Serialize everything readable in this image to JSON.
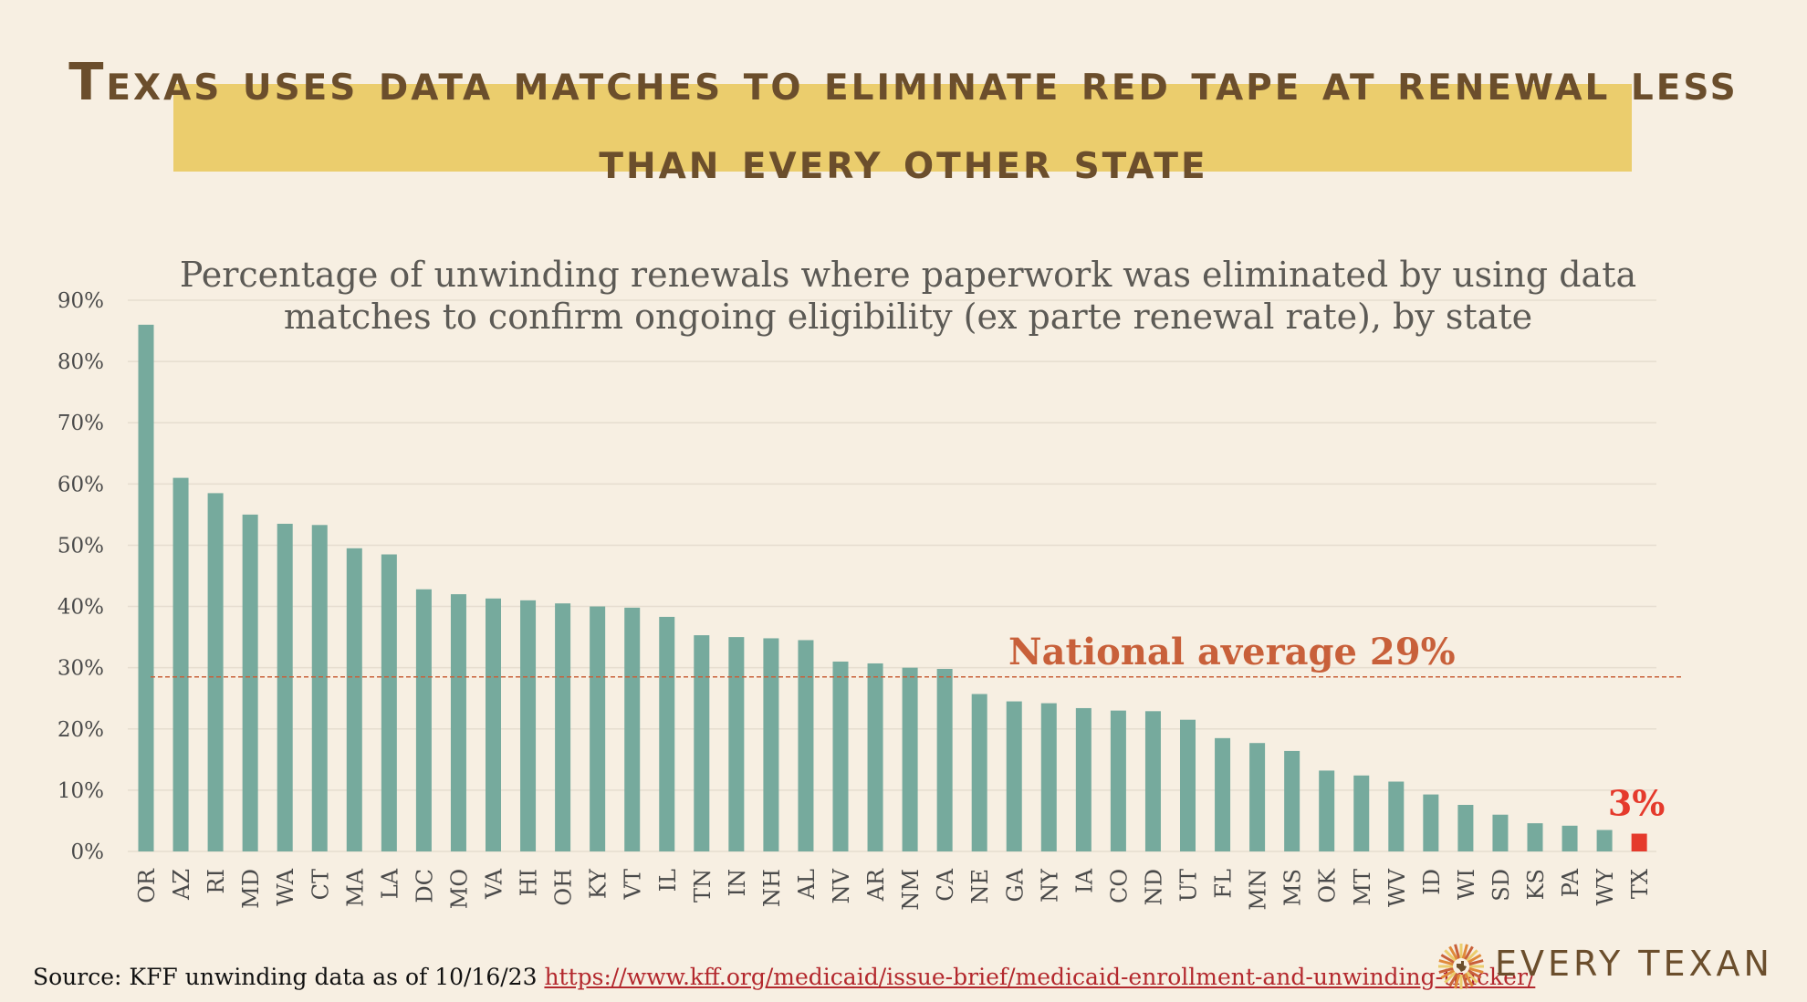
{
  "title": "Texas uses data matches to eliminate red tape at renewal less than every other state",
  "chart_data": {
    "type": "bar",
    "title": "Percentage of unwinding renewals where paperwork was eliminated by using data matches to confirm ongoing eligibility (ex parte renewal rate), by state",
    "xlabel": "",
    "ylabel": "",
    "ylim": [
      0,
      90
    ],
    "yticks": [
      "0%",
      "10%",
      "20%",
      "30%",
      "40%",
      "50%",
      "60%",
      "70%",
      "80%",
      "90%"
    ],
    "categories": [
      "OR",
      "AZ",
      "RI",
      "MD",
      "WA",
      "CT",
      "MA",
      "LA",
      "DC",
      "MO",
      "VA",
      "HI",
      "OH",
      "KY",
      "VT",
      "IL",
      "TN",
      "IN",
      "NH",
      "AL",
      "NV",
      "AR",
      "NM",
      "CA",
      "NE",
      "GA",
      "NY",
      "IA",
      "CO",
      "ND",
      "UT",
      "FL",
      "MN",
      "MS",
      "OK",
      "MT",
      "WV",
      "ID",
      "WI",
      "SD",
      "KS",
      "PA",
      "WY",
      "TX"
    ],
    "values": [
      86,
      61,
      58.5,
      55,
      53.5,
      53.3,
      49.5,
      48.5,
      42.8,
      42,
      41.3,
      41,
      40.5,
      40,
      39.8,
      38.3,
      35.3,
      35,
      34.8,
      34.5,
      31,
      30.7,
      30,
      29.8,
      25.7,
      24.5,
      24.2,
      23.4,
      23,
      22.9,
      21.5,
      18.5,
      17.7,
      16.4,
      13.2,
      12.4,
      11.4,
      9.3,
      7.6,
      6,
      4.6,
      4.2,
      3.5,
      2.9
    ],
    "highlight": {
      "category": "TX",
      "label": "3%",
      "color": "#e53a2c"
    },
    "reference_line": {
      "value": 28.5,
      "label": "National average 29%",
      "color": "#c8603a"
    },
    "bar_color": "#76aa9d",
    "grid": true
  },
  "source": {
    "prefix": "Source: KFF unwinding data as of 10/16/23",
    "url": "https://www.kff.org/medicaid/issue-brief/medicaid-enrollment-and-unwinding-tracker/"
  },
  "logo": {
    "text": "EVERY TEXAN",
    "icon": "texas-sunburst-icon"
  }
}
